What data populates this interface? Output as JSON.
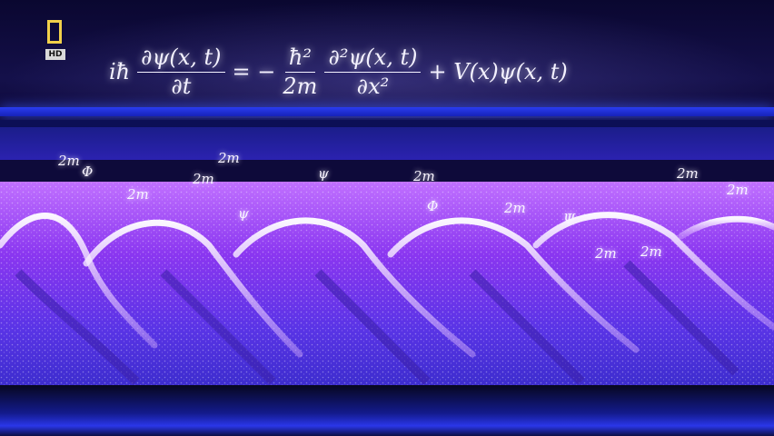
{
  "logo": {
    "badge_text": "HD",
    "frame_color": "#f1d04a"
  },
  "equation": {
    "lhs_prefix": "iħ",
    "lhs_num": "∂ψ(x, t)",
    "lhs_den": "∂t",
    "equals": "= −",
    "mid_num": "ħ²",
    "mid_den": "2m",
    "rhs_num": "∂²ψ(x, t)",
    "rhs_den": "∂x²",
    "tail": "+ V(x)ψ(x, t)"
  },
  "floating_symbols": [
    "2m",
    "Φ",
    "2m",
    "2m",
    "ψ",
    "2m",
    "2m",
    "Φ",
    "Ψ",
    "2m",
    "2m",
    "2m",
    "2m",
    "ψ",
    "2m"
  ],
  "colors": {
    "wave_top": "#b25cff",
    "wave_mid": "#7d2cf0",
    "wave_bottom": "#4a2ce0",
    "crest_glow": "#ffffff",
    "band_blue": "#2a3cf0"
  }
}
